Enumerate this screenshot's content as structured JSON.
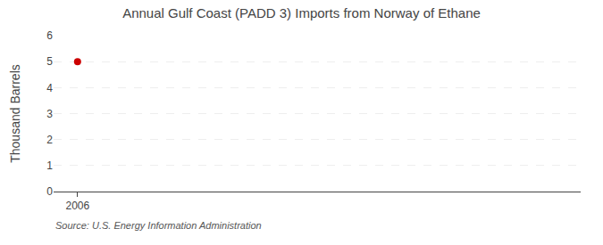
{
  "chart_data": {
    "type": "scatter",
    "title": "Annual Gulf Coast (PADD 3) Imports from Norway of Ethane",
    "ylabel": "Thousand Barrels",
    "annotations": [
      "Source: U.S. Energy Information Administration"
    ],
    "x": [
      2006
    ],
    "values": [
      5
    ],
    "color": "#cc0000",
    "marker": "circle",
    "xlim": [
      2005.5,
      2016.5
    ],
    "xticks": [
      2006
    ],
    "ylim": [
      0,
      6
    ],
    "yticks": [
      0,
      1,
      2,
      3,
      4,
      5,
      6
    ],
    "grid": "y"
  }
}
